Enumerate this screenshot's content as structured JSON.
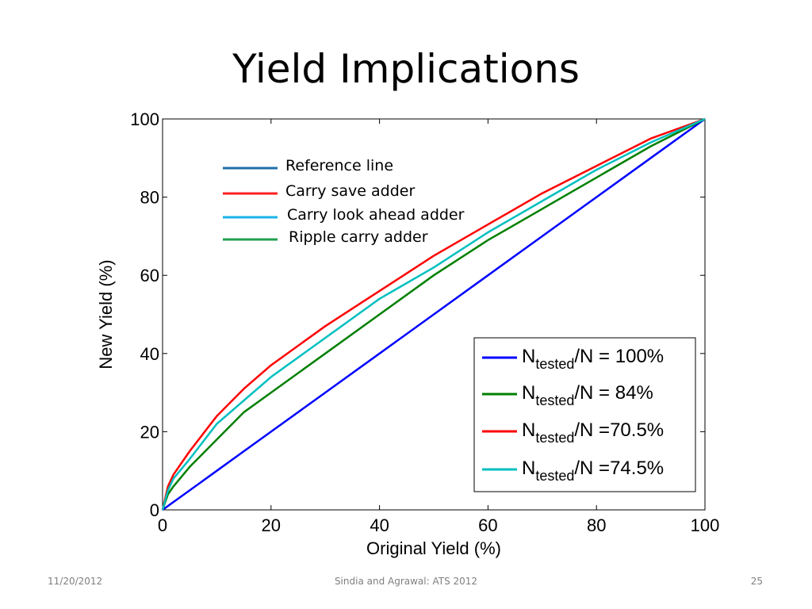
{
  "slide": {
    "title": "Yield Implications",
    "footer_date": "11/20/2012",
    "footer_center": "Sindia and Agrawal: ATS 2012",
    "page_number": "25"
  },
  "chart_data": {
    "type": "line",
    "xlabel": "Original Yield (%)",
    "ylabel": "New Yield (%)",
    "xlim": [
      0,
      100
    ],
    "ylim": [
      0,
      100
    ],
    "xticks": [
      "0",
      "20",
      "40",
      "60",
      "80",
      "100"
    ],
    "yticks": [
      "0",
      "20",
      "40",
      "60",
      "80",
      "100"
    ],
    "grid": false,
    "x": [
      0,
      1,
      2,
      5,
      10,
      15,
      20,
      30,
      40,
      50,
      60,
      70,
      80,
      90,
      100
    ],
    "series": [
      {
        "name": "N_tested/N = 100%",
        "color": "#0000ff",
        "values": [
          0,
          1,
          2,
          5,
          10,
          15,
          20,
          30,
          40,
          50,
          60,
          70,
          80,
          90,
          100
        ]
      },
      {
        "name": "N_tested/N = 84%",
        "color": "#008000",
        "values": [
          0,
          4,
          6,
          11,
          18,
          25,
          30,
          40,
          50,
          60,
          69,
          77,
          85,
          93,
          100
        ]
      },
      {
        "name": "N_tested/N =70.5%",
        "color": "#ff0000",
        "values": [
          0,
          6,
          9,
          15,
          24,
          31,
          37,
          47,
          56,
          65,
          73,
          81,
          88,
          95,
          100
        ]
      },
      {
        "name": "N_tested/N =74.5%",
        "color": "#00bfbf",
        "values": [
          0,
          5,
          8,
          13,
          22,
          28,
          34,
          44,
          54,
          62,
          71,
          79,
          87,
          94,
          100
        ]
      }
    ],
    "legend_top": {
      "placement": "top-left",
      "entries": [
        {
          "label": "Reference line",
          "color": "#1f6fa8"
        },
        {
          "label": "Carry save adder",
          "color": "#ff2020"
        },
        {
          "label": "Carry look ahead adder",
          "color": "#1ab4e8"
        },
        {
          "label": "Ripple carry adder",
          "color": "#20a050"
        }
      ]
    },
    "legend_box": {
      "placement": "bottom-right",
      "entries": [
        {
          "prefix": "N",
          "sub": "tested",
          "suffix": "/N = 100%",
          "color": "#0000ff"
        },
        {
          "prefix": "N",
          "sub": "tested",
          "suffix": "/N = 84%",
          "color": "#008000"
        },
        {
          "prefix": "N",
          "sub": "tested",
          "suffix": "/N =70.5%",
          "color": "#ff0000"
        },
        {
          "prefix": "N",
          "sub": "tested",
          "suffix": "/N =74.5%",
          "color": "#00bfbf"
        }
      ]
    }
  }
}
